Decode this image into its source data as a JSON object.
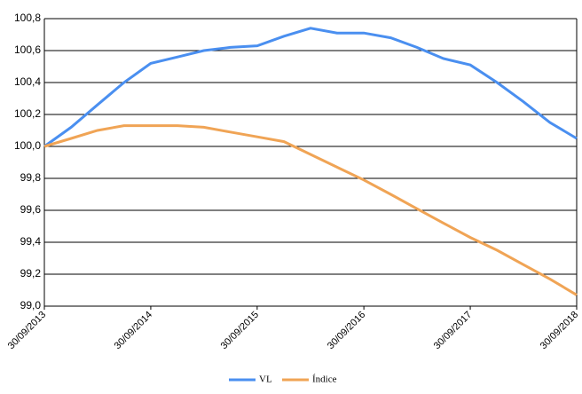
{
  "chart_data": {
    "type": "line",
    "x": [
      "30/09/2013",
      "31/12/2013",
      "31/03/2014",
      "30/06/2014",
      "30/09/2014",
      "31/12/2014",
      "31/03/2015",
      "30/06/2015",
      "30/09/2015",
      "31/12/2015",
      "31/03/2016",
      "30/06/2016",
      "30/09/2016",
      "31/12/2016",
      "31/03/2017",
      "30/06/2017",
      "30/09/2017",
      "31/12/2017",
      "31/03/2018",
      "30/06/2018",
      "30/09/2018"
    ],
    "series": [
      {
        "name": "VL",
        "color": "#4a8ff0",
        "values": [
          100.0,
          100.12,
          100.26,
          100.4,
          100.52,
          100.56,
          100.6,
          100.62,
          100.63,
          100.69,
          100.74,
          100.71,
          100.71,
          100.68,
          100.62,
          100.55,
          100.51,
          100.4,
          100.28,
          100.15,
          100.05
        ]
      },
      {
        "name": "Índice",
        "color": "#f0a455",
        "values": [
          100.0,
          100.05,
          100.1,
          100.13,
          100.13,
          100.13,
          100.12,
          100.09,
          100.06,
          100.03,
          99.95,
          99.87,
          99.79,
          99.7,
          99.61,
          99.52,
          99.43,
          99.35,
          99.26,
          99.17,
          99.07
        ]
      }
    ],
    "xlim": [
      "30/09/2013",
      "30/09/2018"
    ],
    "xticks": [
      "30/09/2013",
      "30/09/2014",
      "30/09/2015",
      "30/09/2016",
      "30/09/2017",
      "30/09/2018"
    ],
    "ylim": [
      99.0,
      100.8
    ],
    "yticks": [
      {
        "value": 99.0,
        "label": "99,0"
      },
      {
        "value": 99.2,
        "label": "99,2"
      },
      {
        "value": 99.4,
        "label": "99,4"
      },
      {
        "value": 99.6,
        "label": "99,6"
      },
      {
        "value": 99.8,
        "label": "99,8"
      },
      {
        "value": 100.0,
        "label": "100,0"
      },
      {
        "value": 100.2,
        "label": "100,2"
      },
      {
        "value": 100.4,
        "label": "100,4"
      },
      {
        "value": 100.6,
        "label": "100,6"
      },
      {
        "value": 100.8,
        "label": "100,8"
      }
    ],
    "grid": true,
    "legend": "bottom"
  }
}
